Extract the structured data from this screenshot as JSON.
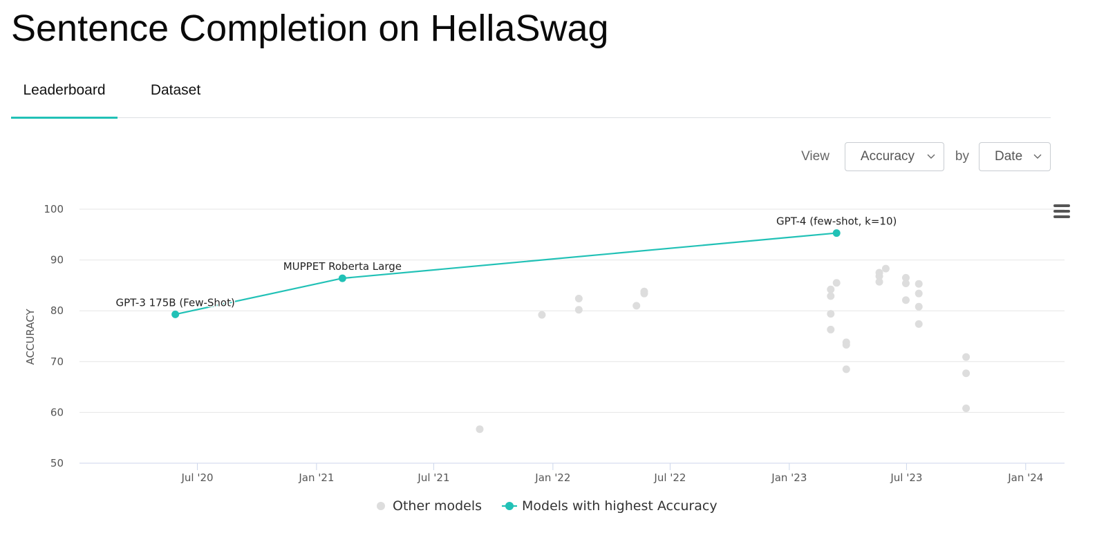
{
  "page": {
    "title": "Sentence Completion on HellaSwag"
  },
  "tabs": [
    {
      "label": "Leaderboard",
      "active": true
    },
    {
      "label": "Dataset",
      "active": false
    }
  ],
  "controls": {
    "view_label": "View",
    "metric_value": "Accuracy",
    "by_label": "by",
    "x_value": "Date"
  },
  "colors": {
    "accent": "#21c1b6",
    "other": "#dddddd",
    "grid": "#e6e6e6"
  },
  "chart_data": {
    "type": "scatter",
    "title": "",
    "xlabel": "",
    "ylabel": "ACCURACY",
    "ylim": [
      50,
      100
    ],
    "yticks": [
      50,
      60,
      70,
      80,
      90,
      100
    ],
    "xlim": [
      "2020-01-01",
      "2024-03-01"
    ],
    "xticks": [
      {
        "date": "2020-07-01",
        "label": "Jul '20"
      },
      {
        "date": "2021-01-01",
        "label": "Jan '21"
      },
      {
        "date": "2021-07-01",
        "label": "Jul '21"
      },
      {
        "date": "2022-01-01",
        "label": "Jan '22"
      },
      {
        "date": "2022-07-01",
        "label": "Jul '22"
      },
      {
        "date": "2023-01-01",
        "label": "Jan '23"
      },
      {
        "date": "2023-07-01",
        "label": "Jul '23"
      },
      {
        "date": "2024-01-01",
        "label": "Jan '24"
      }
    ],
    "grid": true,
    "legend": {
      "position": "bottom-center"
    },
    "series": [
      {
        "name": "Other models",
        "kind": "scatter",
        "color": "#dddddd",
        "points": [
          {
            "x": "2021-09-10",
            "y": 56.7
          },
          {
            "x": "2021-12-15",
            "y": 79.2
          },
          {
            "x": "2022-02-10",
            "y": 82.4
          },
          {
            "x": "2022-02-10",
            "y": 80.2
          },
          {
            "x": "2022-05-10",
            "y": 81.0
          },
          {
            "x": "2022-05-22",
            "y": 83.8
          },
          {
            "x": "2022-05-22",
            "y": 83.4
          },
          {
            "x": "2023-03-06",
            "y": 84.2
          },
          {
            "x": "2023-03-06",
            "y": 82.9
          },
          {
            "x": "2023-03-06",
            "y": 79.4
          },
          {
            "x": "2023-03-06",
            "y": 76.3
          },
          {
            "x": "2023-03-15",
            "y": 85.5
          },
          {
            "x": "2023-03-30",
            "y": 73.8
          },
          {
            "x": "2023-03-30",
            "y": 73.3
          },
          {
            "x": "2023-03-30",
            "y": 68.5
          },
          {
            "x": "2023-05-20",
            "y": 87.5
          },
          {
            "x": "2023-05-20",
            "y": 86.8
          },
          {
            "x": "2023-05-20",
            "y": 85.7
          },
          {
            "x": "2023-05-30",
            "y": 88.3
          },
          {
            "x": "2023-06-30",
            "y": 86.5
          },
          {
            "x": "2023-06-30",
            "y": 85.4
          },
          {
            "x": "2023-06-30",
            "y": 82.1
          },
          {
            "x": "2023-07-20",
            "y": 85.3
          },
          {
            "x": "2023-07-20",
            "y": 83.4
          },
          {
            "x": "2023-07-20",
            "y": 80.8
          },
          {
            "x": "2023-07-20",
            "y": 77.4
          },
          {
            "x": "2023-10-01",
            "y": 70.9
          },
          {
            "x": "2023-10-01",
            "y": 67.7
          },
          {
            "x": "2023-10-01",
            "y": 60.8
          }
        ]
      },
      {
        "name": "Models with highest Accuracy",
        "kind": "line",
        "color": "#21c1b6",
        "points": [
          {
            "x": "2020-05-28",
            "y": 79.3,
            "label": "GPT-3 175B (Few-Shot)"
          },
          {
            "x": "2021-02-10",
            "y": 86.4,
            "label": "MUPPET Roberta Large"
          },
          {
            "x": "2023-03-15",
            "y": 95.3,
            "label": "GPT-4 (few-shot, k=10)"
          }
        ]
      }
    ]
  }
}
